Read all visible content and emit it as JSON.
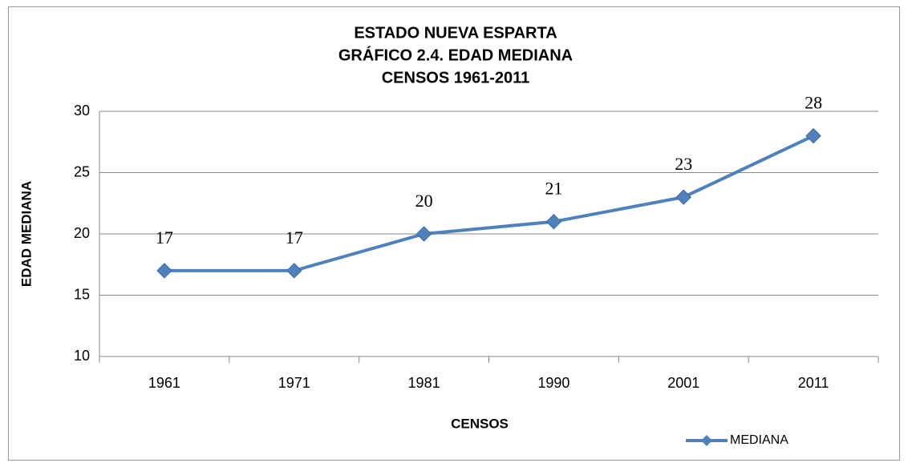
{
  "chart_data": {
    "type": "line",
    "title": [
      "ESTADO NUEVA ESPARTA",
      "GRÁFICO 2.4. EDAD MEDIANA",
      "CENSOS 1961-2011"
    ],
    "x_label": "CENSOS",
    "y_label": "EDAD MEDIANA",
    "categories": [
      "1961",
      "1971",
      "1981",
      "1990",
      "2001",
      "2011"
    ],
    "series": [
      {
        "name": "MEDIANA",
        "color": "#4f81bd",
        "values": [
          17,
          17,
          20,
          21,
          23,
          28
        ]
      }
    ],
    "ylim": [
      10,
      30
    ],
    "yticks": [
      10,
      15,
      20,
      25,
      30
    ],
    "grid": true,
    "legend": "bottom-right"
  }
}
